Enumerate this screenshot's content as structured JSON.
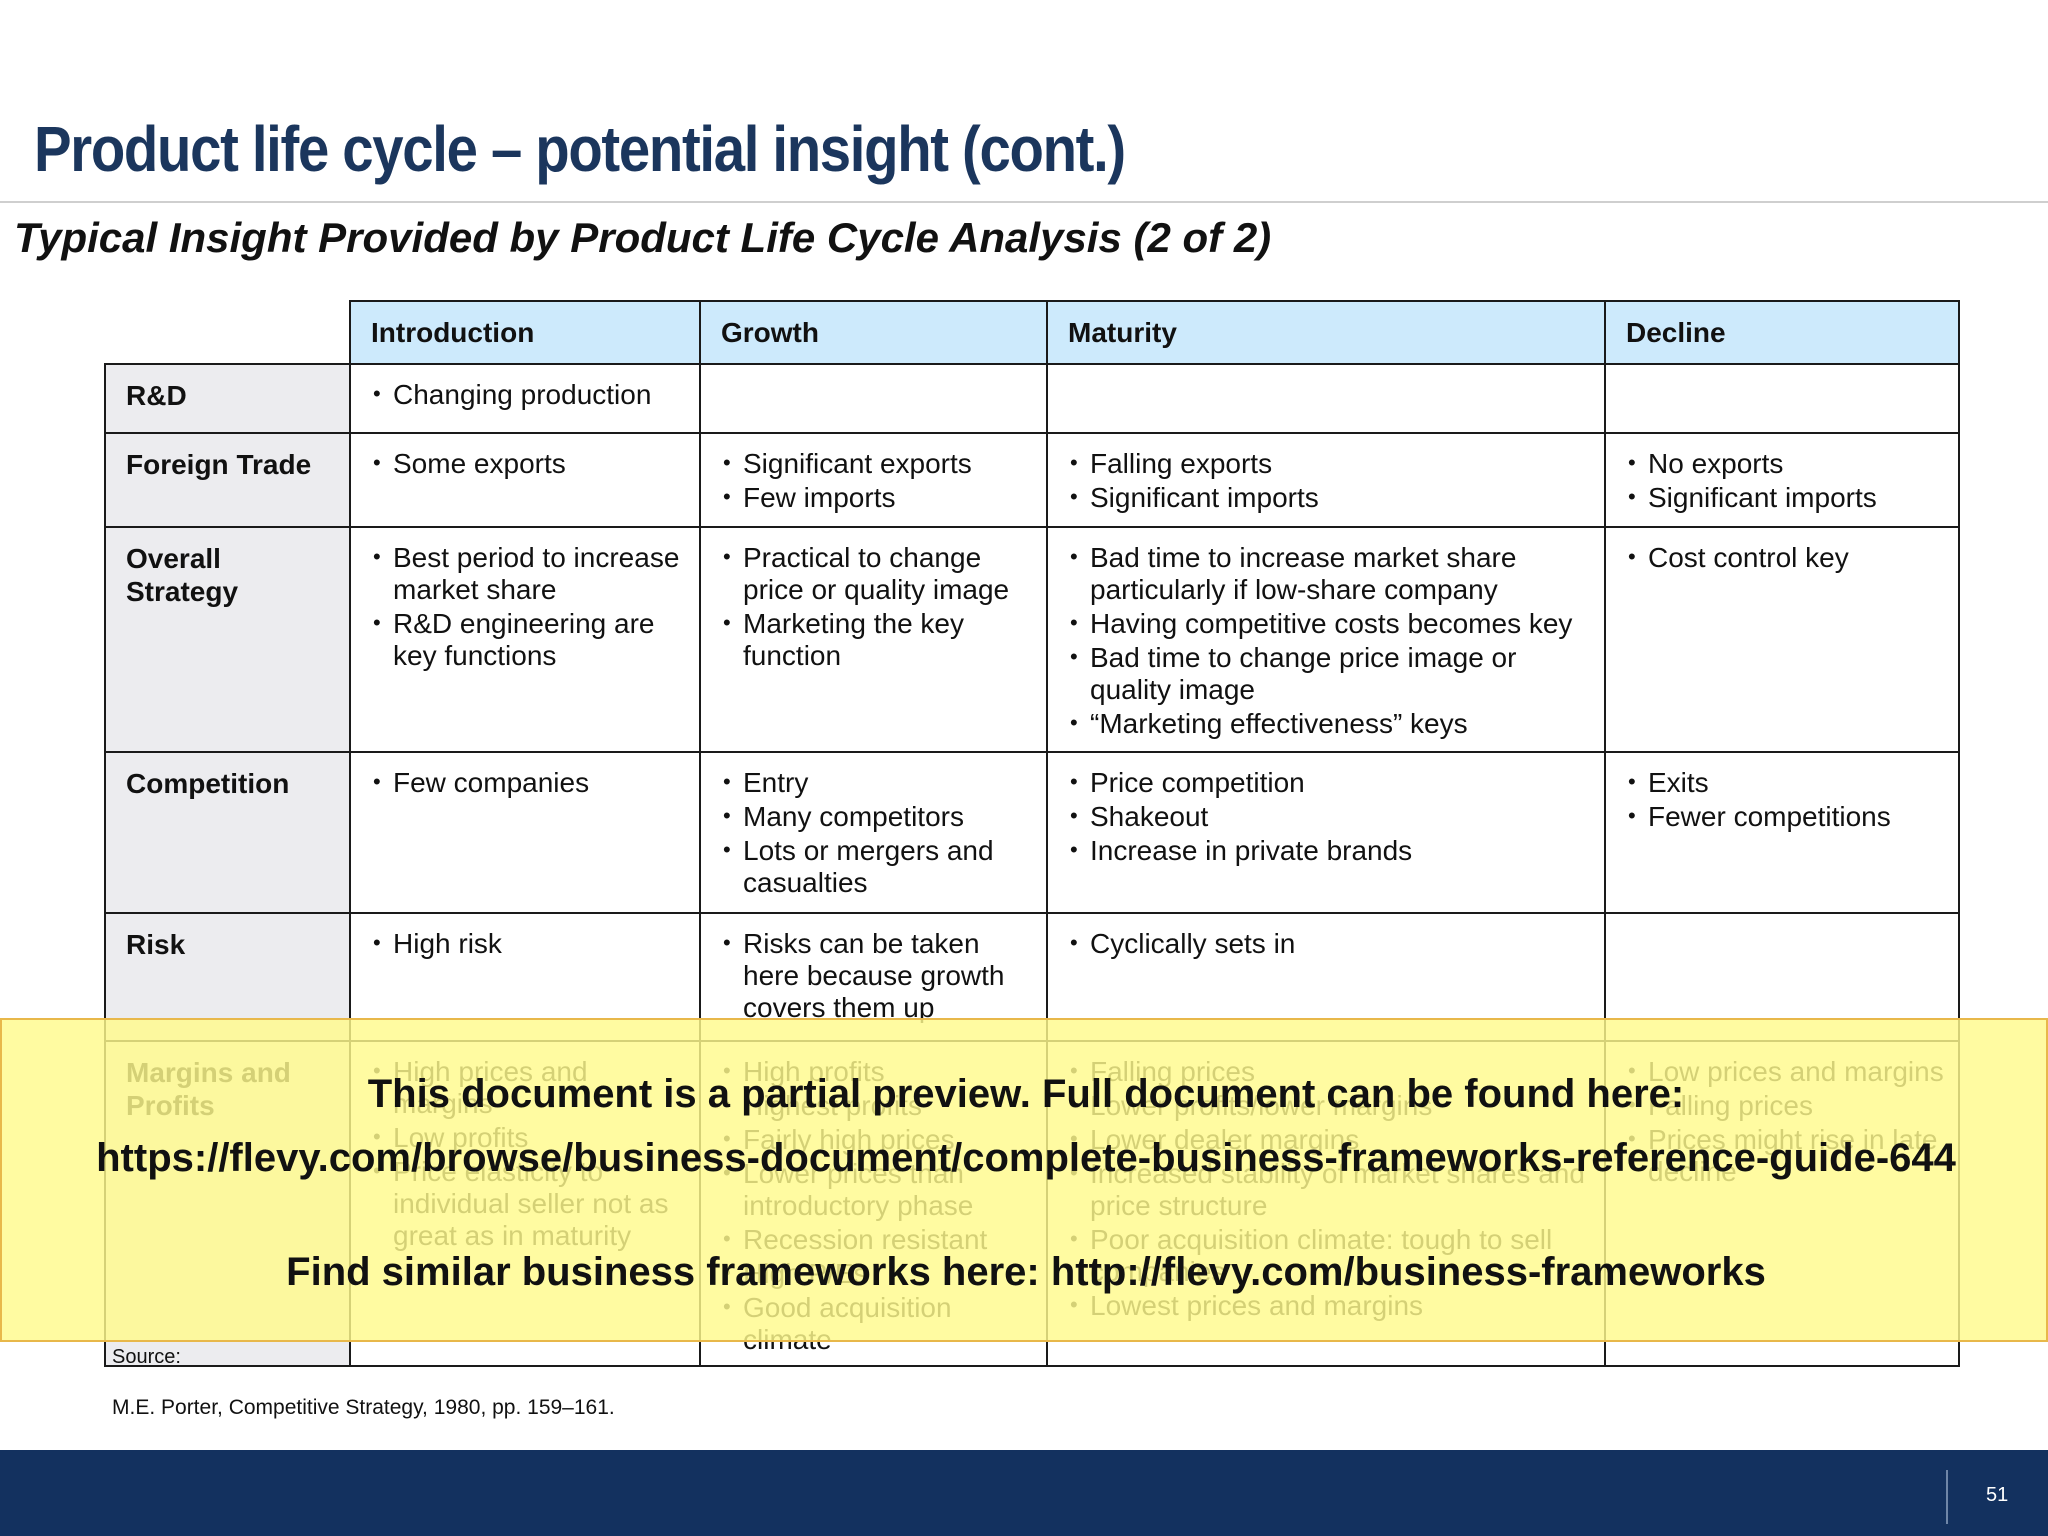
{
  "slide": {
    "title": "Product life cycle – potential insight (cont.)",
    "subtitle": "Typical Insight Provided by Product Life Cycle Analysis (2 of 2)",
    "page_number": "51"
  },
  "table": {
    "columns": [
      "Introduction",
      "Growth",
      "Maturity",
      "Decline"
    ],
    "rows": [
      {
        "label": "R&D",
        "cells": [
          [
            "Changing production"
          ],
          [],
          [],
          []
        ]
      },
      {
        "label": "Foreign Trade",
        "cells": [
          [
            "Some exports"
          ],
          [
            "Significant exports",
            "Few imports"
          ],
          [
            "Falling exports",
            "Significant imports"
          ],
          [
            "No exports",
            "Significant imports"
          ]
        ]
      },
      {
        "label": "Overall Strategy",
        "cells": [
          [
            "Best period to increase market share",
            "R&D engineering are key functions"
          ],
          [
            "Practical to change price or quality image",
            "Marketing the key function"
          ],
          [
            "Bad time to increase market share particularly if low-share company",
            "Having competitive costs becomes key",
            "Bad time to change price image or quality image",
            "“Marketing effectiveness” keys"
          ],
          [
            "Cost control key"
          ]
        ]
      },
      {
        "label": "Competition",
        "cells": [
          [
            "Few companies"
          ],
          [
            "Entry",
            "Many competitors",
            "Lots or mergers and casualties"
          ],
          [
            "Price competition",
            "Shakeout",
            "Increase in private brands"
          ],
          [
            "Exits",
            "Fewer competitions"
          ]
        ]
      },
      {
        "label": "Risk",
        "cells": [
          [
            "High risk"
          ],
          [
            "Risks can be taken here because growth covers them up"
          ],
          [
            "Cyclically sets in"
          ],
          []
        ]
      },
      {
        "label": "Margins and Profits",
        "cells": [
          [
            "High prices and margins",
            "Low profits",
            "Price elasticity to individual seller not as great as in maturity"
          ],
          [
            "High profits",
            "Highest profits",
            "Fairly high prices",
            "Lower prices than introductory phase",
            "Recession resistant",
            "High P/Es",
            "Good acquisition climate"
          ],
          [
            "Falling prices",
            "Lower profits/lower margins",
            "Lower dealer margins",
            "Increased stability of market shares and price structure",
            "Poor acquisition climate: tough to sell companies",
            "Lowest prices and margins"
          ],
          [
            "Low prices and margins",
            "Falling prices",
            "Prices might rise in late decline"
          ]
        ]
      }
    ]
  },
  "source": {
    "label": "Source:",
    "text": "M.E. Porter, Competitive Strategy, 1980, pp. 159–161."
  },
  "banner": {
    "line1": "This document is a partial preview.  Full document can be found here:",
    "line2": "https://flevy.com/browse/business-document/complete-business-frameworks-reference-guide-644",
    "line3": "Find similar business frameworks here: http://flevy.com/business-frameworks"
  }
}
